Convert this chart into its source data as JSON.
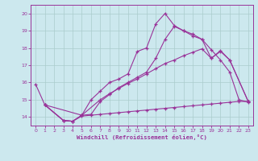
{
  "xlabel": "Windchill (Refroidissement éolien,°C)",
  "bg_color": "#cce8ee",
  "line_color": "#993399",
  "grid_color": "#aacccc",
  "xlim": [
    -0.5,
    23.5
  ],
  "ylim": [
    13.5,
    20.5
  ],
  "xticks": [
    0,
    1,
    2,
    3,
    4,
    5,
    6,
    7,
    8,
    9,
    10,
    11,
    12,
    13,
    14,
    15,
    16,
    17,
    18,
    19,
    20,
    21,
    22,
    23
  ],
  "yticks": [
    14,
    15,
    16,
    17,
    18,
    19,
    20
  ],
  "line1": {
    "x": [
      0,
      1,
      3,
      4,
      5,
      6,
      7,
      8,
      9,
      10,
      11,
      12,
      13,
      14,
      15,
      16,
      17,
      18,
      19,
      20,
      21,
      22,
      23
    ],
    "y": [
      15.9,
      14.7,
      13.8,
      13.75,
      14.1,
      15.0,
      15.5,
      16.0,
      16.2,
      16.5,
      17.8,
      18.0,
      19.4,
      20.0,
      19.3,
      19.0,
      18.8,
      18.5,
      17.9,
      17.3,
      16.6,
      15.0,
      14.85
    ]
  },
  "line2": {
    "x": [
      1,
      3,
      4,
      5,
      6,
      7,
      8,
      9,
      10,
      11,
      12,
      13,
      14,
      15,
      16,
      17,
      18,
      19,
      20,
      21,
      23
    ],
    "y": [
      14.7,
      13.8,
      13.75,
      14.1,
      14.15,
      14.9,
      15.3,
      15.7,
      16.0,
      16.3,
      16.6,
      17.4,
      18.5,
      19.25,
      19.0,
      18.7,
      18.5,
      17.4,
      17.85,
      17.3,
      14.9
    ]
  },
  "line3": {
    "x": [
      1,
      5,
      7,
      8,
      9,
      10,
      11,
      12,
      13,
      14,
      15,
      16,
      17,
      18,
      19,
      20,
      21,
      23
    ],
    "y": [
      14.7,
      14.1,
      15.0,
      15.35,
      15.65,
      15.95,
      16.2,
      16.5,
      16.8,
      17.1,
      17.3,
      17.55,
      17.75,
      17.95,
      17.4,
      17.8,
      17.3,
      14.9
    ]
  },
  "line4": {
    "x": [
      1,
      3,
      4,
      5,
      6,
      7,
      8,
      9,
      10,
      11,
      12,
      13,
      14,
      15,
      16,
      17,
      18,
      19,
      20,
      21,
      22,
      23
    ],
    "y": [
      14.7,
      13.8,
      13.75,
      14.05,
      14.1,
      14.15,
      14.2,
      14.25,
      14.3,
      14.35,
      14.4,
      14.45,
      14.5,
      14.55,
      14.6,
      14.65,
      14.7,
      14.75,
      14.8,
      14.85,
      14.9,
      14.9
    ]
  }
}
